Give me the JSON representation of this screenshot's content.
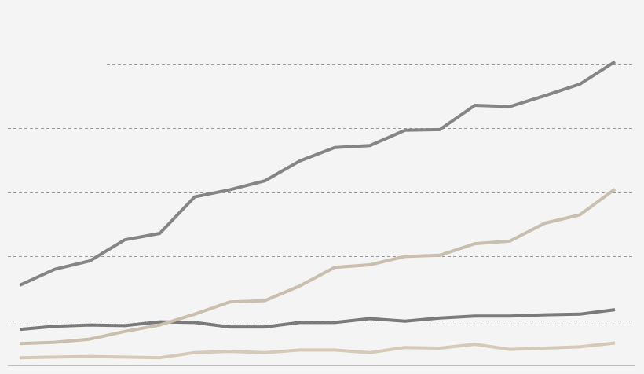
{
  "chart_data": {
    "type": "line",
    "title": "",
    "xlabel": "",
    "ylabel": "",
    "grid": true,
    "ylim": [
      -2,
      50
    ],
    "x": [
      1,
      2,
      3,
      4,
      5,
      6,
      7,
      8,
      9,
      10,
      11,
      12,
      13,
      14,
      15,
      16,
      17,
      18
    ],
    "series": [
      {
        "color": "#858585",
        "values": [
          10.5,
          13.0,
          14.3,
          17.6,
          18.6,
          24.3,
          25.4,
          26.8,
          29.9,
          32.0,
          32.3,
          34.7,
          34.8,
          38.6,
          38.4,
          40.1,
          41.9,
          45.4
        ]
      },
      {
        "color": "#c8bfae",
        "values": [
          1.4,
          1.6,
          2.1,
          3.3,
          4.3,
          6.0,
          7.9,
          8.1,
          10.4,
          13.3,
          13.7,
          15.0,
          15.2,
          17.0,
          17.4,
          20.2,
          21.5,
          25.5
        ]
      },
      {
        "color": "#7a7a7a",
        "values": [
          3.6,
          4.1,
          4.3,
          4.2,
          4.8,
          4.7,
          4.0,
          4.0,
          4.7,
          4.7,
          5.3,
          4.9,
          5.4,
          5.7,
          5.7,
          5.9,
          6.0,
          6.7
        ]
      },
      {
        "color": "#d4cab8",
        "values": [
          -0.8,
          -0.7,
          -0.6,
          -0.7,
          -0.8,
          0.0,
          0.2,
          0.0,
          0.4,
          0.4,
          0.0,
          0.8,
          0.7,
          1.3,
          0.5,
          0.7,
          0.9,
          1.5
        ]
      }
    ],
    "gridlines": [
      5,
      15,
      25,
      35,
      45
    ]
  }
}
